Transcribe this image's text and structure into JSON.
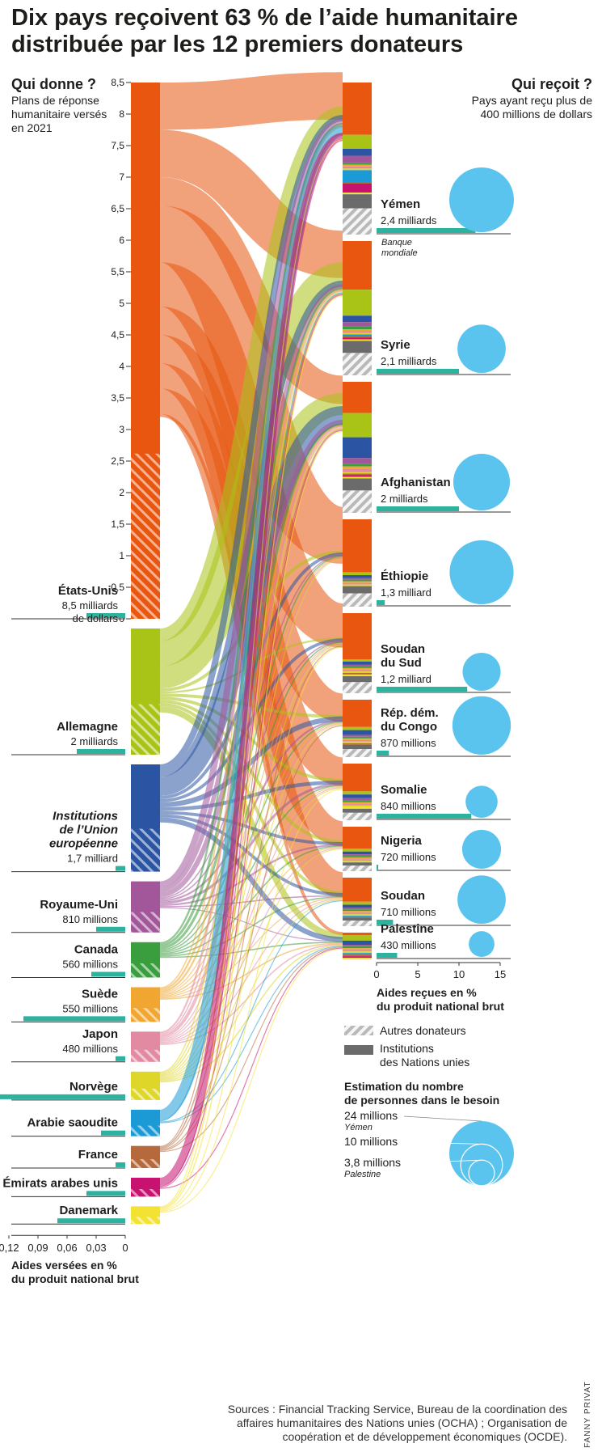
{
  "title": "Dix pays reçoivent 63 % de l’aide humanitaire distribuée par les 12 premiers donateurs",
  "left_header": {
    "title": "Qui donne ?",
    "subtitle": "Plans de réponse humanitaire versés en 2021"
  },
  "right_header": {
    "title": "Qui reçoit ?",
    "subtitle": "Pays ayant reçu plus de 400 millions de dollars"
  },
  "colors": {
    "usa": "#e8560f",
    "germany": "#a9c317",
    "eu": "#2b55a3",
    "uk": "#a2579a",
    "canada": "#3a9d3e",
    "sweden": "#f0a630",
    "japan": "#e38aa3",
    "norway": "#dfd62a",
    "saudi": "#1c9ad6",
    "france": "#b6693a",
    "uae": "#c7126f",
    "denmark": "#f4e233",
    "un": "#6b6b6b",
    "gnp_bar": "#2bb3a0",
    "need_circle": "#5bc4ee",
    "hatch": "#b9b9b9"
  },
  "chart_data": {
    "type": "alluvial",
    "title": "Dix pays reçoivent 63 % de l’aide humanitaire distribuée par les 12 premiers donateurs",
    "donor_axis_ticks": [
      "0",
      "0,5",
      "1",
      "1,5",
      "2",
      "2,5",
      "3",
      "3,5",
      "4",
      "4,5",
      "5",
      "5,5",
      "6",
      "6,5",
      "7",
      "7,5",
      "8",
      "8,5"
    ],
    "donor_axis_unit": "milliards de dollars",
    "donors": [
      {
        "key": "usa",
        "name": "États-Unis",
        "amount_label": "8,5 milliards de dollars",
        "amount_bn": 8.5,
        "gnp_pct": 0.04,
        "italic": false
      },
      {
        "key": "germany",
        "name": "Allemagne",
        "amount_label": "2 milliards",
        "amount_bn": 2.0,
        "gnp_pct": 0.05,
        "italic": false
      },
      {
        "key": "eu",
        "name": "Institutions de l’Union européenne",
        "amount_label": "1,7 milliard",
        "amount_bn": 1.7,
        "gnp_pct": 0.01,
        "italic": true
      },
      {
        "key": "uk",
        "name": "Royaume-Uni",
        "amount_label": "810 millions",
        "amount_bn": 0.81,
        "gnp_pct": 0.03,
        "italic": false
      },
      {
        "key": "canada",
        "name": "Canada",
        "amount_label": "560 millions",
        "amount_bn": 0.56,
        "gnp_pct": 0.035,
        "italic": false
      },
      {
        "key": "sweden",
        "name": "Suède",
        "amount_label": "550 millions",
        "amount_bn": 0.55,
        "gnp_pct": 0.105,
        "italic": false
      },
      {
        "key": "japan",
        "name": "Japon",
        "amount_label": "480 millions",
        "amount_bn": 0.48,
        "gnp_pct": 0.01,
        "italic": false
      },
      {
        "key": "norway",
        "name": "Norvège",
        "amount_label": "",
        "amount_bn": 0.45,
        "gnp_pct": 0.13,
        "italic": false
      },
      {
        "key": "saudi",
        "name": "Arabie saoudite",
        "amount_label": "",
        "amount_bn": 0.42,
        "gnp_pct": 0.025,
        "italic": false
      },
      {
        "key": "france",
        "name": "France",
        "amount_label": "",
        "amount_bn": 0.35,
        "gnp_pct": 0.01,
        "italic": false
      },
      {
        "key": "uae",
        "name": "Émirats arabes unis",
        "amount_label": "",
        "amount_bn": 0.3,
        "gnp_pct": 0.04,
        "italic": false
      },
      {
        "key": "denmark",
        "name": "Danemark",
        "amount_label": "",
        "amount_bn": 0.28,
        "gnp_pct": 0.07,
        "italic": false
      }
    ],
    "donor_gnp_axis": {
      "ticks": [
        "0,12",
        "0,09",
        "0,06",
        "0,03",
        "0"
      ],
      "label": "Aides versées en % du produit national brut"
    },
    "recipients": [
      {
        "name": "Yémen",
        "amount_label": "2,4 milliards",
        "amount_bn": 2.4,
        "gnp_pct": 12,
        "people_in_need_m": 24,
        "note": "Banque mondiale"
      },
      {
        "name": "Syrie",
        "amount_label": "2,1 milliards",
        "amount_bn": 2.1,
        "gnp_pct": 10,
        "people_in_need_m": 13.4,
        "note": ""
      },
      {
        "name": "Afghanistan",
        "amount_label": "2 milliards",
        "amount_bn": 2.0,
        "gnp_pct": 10,
        "people_in_need_m": 18.4,
        "note": ""
      },
      {
        "name": "Éthiopie",
        "amount_label": "1,3 milliard",
        "amount_bn": 1.3,
        "gnp_pct": 1,
        "people_in_need_m": 23.5,
        "note": ""
      },
      {
        "name": "Soudan du Sud",
        "amount_label": "1,2 milliard",
        "amount_bn": 1.2,
        "gnp_pct": 11,
        "people_in_need_m": 8.3,
        "note": ""
      },
      {
        "name": "Rép. dém. du Congo",
        "amount_label": "870 millions",
        "amount_bn": 0.87,
        "gnp_pct": 1.5,
        "people_in_need_m": 19.6,
        "note": ""
      },
      {
        "name": "Somalie",
        "amount_label": "840 millions",
        "amount_bn": 0.84,
        "gnp_pct": 11.5,
        "people_in_need_m": 5.9,
        "note": ""
      },
      {
        "name": "Nigeria",
        "amount_label": "720 millions",
        "amount_bn": 0.72,
        "gnp_pct": 0.2,
        "people_in_need_m": 8.7,
        "note": ""
      },
      {
        "name": "Soudan",
        "amount_label": "710 millions",
        "amount_bn": 0.71,
        "gnp_pct": 2,
        "people_in_need_m": 13.4,
        "note": ""
      },
      {
        "name": "Palestine",
        "amount_label": "430 millions",
        "amount_bn": 0.43,
        "gnp_pct": 2.5,
        "people_in_need_m": 3.8,
        "note": ""
      }
    ],
    "recipient_gnp_axis": {
      "ticks": [
        "0",
        "5",
        "10",
        "15"
      ],
      "range": [
        0,
        15
      ],
      "label": "Aides reçues en % du produit national brut"
    },
    "legend": [
      {
        "kind": "hatch",
        "label": "Autres donateurs"
      },
      {
        "kind": "solid",
        "label": "Institutions des Nations unies"
      }
    ],
    "bubble_legend": {
      "title": "Estimation du nombre de personnes dans le besoin",
      "entries": [
        {
          "value_m": 24,
          "label": "24 millions",
          "note": "Yémen"
        },
        {
          "value_m": 10,
          "label": "10 millions",
          "note": ""
        },
        {
          "value_m": 3.8,
          "label": "3,8 millions",
          "note": "Palestine"
        }
      ]
    },
    "flows": [
      {
        "from": "usa",
        "to": "Yémen",
        "bn": 0.75
      },
      {
        "from": "usa",
        "to": "Syrie",
        "bn": 0.75
      },
      {
        "from": "usa",
        "to": "Afghanistan",
        "bn": 0.45
      },
      {
        "from": "usa",
        "to": "Éthiopie",
        "bn": 0.9
      },
      {
        "from": "usa",
        "to": "Soudan du Sud",
        "bn": 0.7
      },
      {
        "from": "usa",
        "to": "Rép. dém. du Congo",
        "bn": 0.45
      },
      {
        "from": "usa",
        "to": "Somalie",
        "bn": 0.45
      },
      {
        "from": "usa",
        "to": "Nigeria",
        "bn": 0.4
      },
      {
        "from": "usa",
        "to": "Soudan",
        "bn": 0.4
      },
      {
        "from": "usa",
        "to": "Palestine",
        "bn": 0.05
      },
      {
        "from": "germany",
        "to": "Yémen",
        "bn": 0.2
      },
      {
        "from": "germany",
        "to": "Syrie",
        "bn": 0.4
      },
      {
        "from": "germany",
        "to": "Afghanistan",
        "bn": 0.35
      },
      {
        "from": "germany",
        "to": "Éthiopie",
        "bn": 0.05
      },
      {
        "from": "germany",
        "to": "Soudan du Sud",
        "bn": 0.03
      },
      {
        "from": "germany",
        "to": "Rép. dém. du Congo",
        "bn": 0.05
      },
      {
        "from": "germany",
        "to": "Somalie",
        "bn": 0.05
      },
      {
        "from": "germany",
        "to": "Nigeria",
        "bn": 0.05
      },
      {
        "from": "germany",
        "to": "Soudan",
        "bn": 0.05
      },
      {
        "from": "germany",
        "to": "Palestine",
        "bn": 0.1
      },
      {
        "from": "eu",
        "to": "Yémen",
        "bn": 0.1
      },
      {
        "from": "eu",
        "to": "Syrie",
        "bn": 0.1
      },
      {
        "from": "eu",
        "to": "Afghanistan",
        "bn": 0.3
      },
      {
        "from": "eu",
        "to": "Éthiopie",
        "bn": 0.05
      },
      {
        "from": "eu",
        "to": "Soudan du Sud",
        "bn": 0.05
      },
      {
        "from": "eu",
        "to": "Rép. dém. du Congo",
        "bn": 0.08
      },
      {
        "from": "eu",
        "to": "Somalie",
        "bn": 0.06
      },
      {
        "from": "eu",
        "to": "Nigeria",
        "bn": 0.05
      },
      {
        "from": "eu",
        "to": "Soudan",
        "bn": 0.05
      },
      {
        "from": "eu",
        "to": "Palestine",
        "bn": 0.08
      },
      {
        "from": "uk",
        "to": "Yémen",
        "bn": 0.1
      },
      {
        "from": "uk",
        "to": "Syrie",
        "bn": 0.07
      },
      {
        "from": "uk",
        "to": "Afghanistan",
        "bn": 0.08
      },
      {
        "from": "uk",
        "to": "Éthiopie",
        "bn": 0.02
      },
      {
        "from": "uk",
        "to": "Soudan du Sud",
        "bn": 0.02
      },
      {
        "from": "uk",
        "to": "Rép. dém. du Congo",
        "bn": 0.03
      },
      {
        "from": "uk",
        "to": "Somalie",
        "bn": 0.04
      },
      {
        "from": "uk",
        "to": "Nigeria",
        "bn": 0.03
      },
      {
        "from": "uk",
        "to": "Soudan",
        "bn": 0.02
      },
      {
        "from": "uk",
        "to": "Palestine",
        "bn": 0.01
      },
      {
        "from": "canada",
        "to": "Yémen",
        "bn": 0.03
      },
      {
        "from": "canada",
        "to": "Syrie",
        "bn": 0.04
      },
      {
        "from": "canada",
        "to": "Afghanistan",
        "bn": 0.04
      },
      {
        "from": "canada",
        "to": "Éthiopie",
        "bn": 0.02
      },
      {
        "from": "canada",
        "to": "Soudan du Sud",
        "bn": 0.02
      },
      {
        "from": "canada",
        "to": "Rép. dém. du Congo",
        "bn": 0.02
      },
      {
        "from": "canada",
        "to": "Somalie",
        "bn": 0.02
      },
      {
        "from": "canada",
        "to": "Nigeria",
        "bn": 0.02
      },
      {
        "from": "canada",
        "to": "Soudan",
        "bn": 0.02
      },
      {
        "from": "canada",
        "to": "Palestine",
        "bn": 0.02
      },
      {
        "from": "sweden",
        "to": "Yémen",
        "bn": 0.02
      },
      {
        "from": "sweden",
        "to": "Syrie",
        "bn": 0.03
      },
      {
        "from": "sweden",
        "to": "Afghanistan",
        "bn": 0.03
      },
      {
        "from": "sweden",
        "to": "Éthiopie",
        "bn": 0.01
      },
      {
        "from": "sweden",
        "to": "Soudan du Sud",
        "bn": 0.01
      },
      {
        "from": "sweden",
        "to": "Rép. dém. du Congo",
        "bn": 0.02
      },
      {
        "from": "sweden",
        "to": "Somalie",
        "bn": 0.01
      },
      {
        "from": "sweden",
        "to": "Nigeria",
        "bn": 0.01
      },
      {
        "from": "sweden",
        "to": "Soudan",
        "bn": 0.01
      },
      {
        "from": "sweden",
        "to": "Palestine",
        "bn": 0.02
      },
      {
        "from": "japan",
        "to": "Yémen",
        "bn": 0.03
      },
      {
        "from": "japan",
        "to": "Syrie",
        "bn": 0.02
      },
      {
        "from": "japan",
        "to": "Afghanistan",
        "bn": 0.05
      },
      {
        "from": "japan",
        "to": "Éthiopie",
        "bn": 0.01
      },
      {
        "from": "japan",
        "to": "Soudan du Sud",
        "bn": 0.01
      },
      {
        "from": "japan",
        "to": "Rép. dém. du Congo",
        "bn": 0.01
      },
      {
        "from": "japan",
        "to": "Somalie",
        "bn": 0.01
      },
      {
        "from": "japan",
        "to": "Nigeria",
        "bn": 0.01
      },
      {
        "from": "japan",
        "to": "Soudan",
        "bn": 0.01
      },
      {
        "from": "japan",
        "to": "Palestine",
        "bn": 0.02
      },
      {
        "from": "norway",
        "to": "Yémen",
        "bn": 0.02
      },
      {
        "from": "norway",
        "to": "Syrie",
        "bn": 0.02
      },
      {
        "from": "norway",
        "to": "Afghanistan",
        "bn": 0.02
      },
      {
        "from": "norway",
        "to": "Éthiopie",
        "bn": 0.01
      },
      {
        "from": "norway",
        "to": "Soudan du Sud",
        "bn": 0.01
      },
      {
        "from": "norway",
        "to": "Rép. dém. du Congo",
        "bn": 0.01
      },
      {
        "from": "norway",
        "to": "Somalie",
        "bn": 0.01
      },
      {
        "from": "norway",
        "to": "Nigeria",
        "bn": 0.01
      },
      {
        "from": "norway",
        "to": "Soudan",
        "bn": 0.01
      },
      {
        "from": "norway",
        "to": "Palestine",
        "bn": 0.02
      },
      {
        "from": "saudi",
        "to": "Yémen",
        "bn": 0.17
      },
      {
        "from": "saudi",
        "to": "Syrie",
        "bn": 0.01
      },
      {
        "from": "saudi",
        "to": "Soudan",
        "bn": 0.01
      },
      {
        "from": "saudi",
        "to": "Palestine",
        "bn": 0.01
      },
      {
        "from": "france",
        "to": "Yémen",
        "bn": 0.01
      },
      {
        "from": "france",
        "to": "Syrie",
        "bn": 0.02
      },
      {
        "from": "france",
        "to": "Afghanistan",
        "bn": 0.01
      },
      {
        "from": "france",
        "to": "Soudan du Sud",
        "bn": 0.01
      },
      {
        "from": "france",
        "to": "Rép. dém. du Congo",
        "bn": 0.01
      },
      {
        "from": "france",
        "to": "Palestine",
        "bn": 0.01
      },
      {
        "from": "uae",
        "to": "Yémen",
        "bn": 0.13
      },
      {
        "from": "uae",
        "to": "Syrie",
        "bn": 0.01
      },
      {
        "from": "uae",
        "to": "Afghanistan",
        "bn": 0.01
      },
      {
        "from": "uae",
        "to": "Palestine",
        "bn": 0.01
      },
      {
        "from": "denmark",
        "to": "Yémen",
        "bn": 0.01
      },
      {
        "from": "denmark",
        "to": "Syrie",
        "bn": 0.02
      },
      {
        "from": "denmark",
        "to": "Afghanistan",
        "bn": 0.02
      },
      {
        "from": "denmark",
        "to": "Soudan du Sud",
        "bn": 0.01
      },
      {
        "from": "denmark",
        "to": "Somalie",
        "bn": 0.01
      },
      {
        "from": "denmark",
        "to": "Palestine",
        "bn": 0.01
      }
    ]
  },
  "sources": "Sources : Financial Tracking Service, Bureau de la coordination des affaires humanitaires des Nations unies (OCHA) ; Organisation de coopération et de développement économiques (OCDE).",
  "credit": "FANNY PRIVAT"
}
